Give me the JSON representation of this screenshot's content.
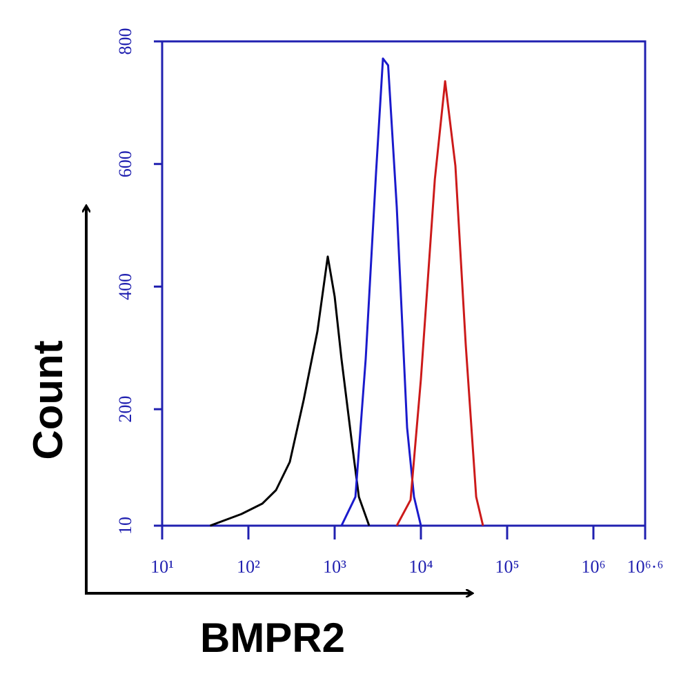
{
  "chart_data": {
    "type": "line",
    "x_label": "BMPR2",
    "y_label": "Count",
    "xscale": "log",
    "xlim": [
      10,
      3981072
    ],
    "ylim": [
      10,
      800
    ],
    "xticks": [
      {
        "value": 10,
        "label": "10¹"
      },
      {
        "value": 100,
        "label": "10²"
      },
      {
        "value": 1000,
        "label": "10³"
      },
      {
        "value": 10000,
        "label": "10⁴"
      },
      {
        "value": 100000,
        "label": "10⁵"
      },
      {
        "value": 1000000,
        "label": "10⁶"
      },
      {
        "value": 3981072,
        "label": "10⁶·⁶"
      }
    ],
    "yticks": [
      10,
      200,
      400,
      600,
      800
    ],
    "frame_color": "#2020b0",
    "series": [
      {
        "color": "#000000",
        "x": [
          36,
          83,
          145,
          209,
          302,
          437,
          631,
          832,
          1000,
          1200,
          1580,
          1910,
          2510
        ],
        "values": [
          10,
          29,
          46,
          68,
          114,
          215,
          327,
          449,
          384,
          282,
          147,
          57,
          10
        ]
      },
      {
        "color": "#1a1acc",
        "x": [
          1200,
          1740,
          2290,
          3020,
          3630,
          4170,
          5250,
          6920,
          8320,
          10000
        ],
        "values": [
          10,
          57,
          282,
          586,
          772,
          761,
          530,
          170,
          57,
          10
        ]
      },
      {
        "color": "#cc1a1a",
        "x": [
          5250,
          7590,
          10000,
          14500,
          19100,
          25100,
          33100,
          43700,
          52500
        ],
        "values": [
          10,
          52,
          249,
          575,
          735,
          597,
          305,
          57,
          10
        ]
      }
    ]
  }
}
